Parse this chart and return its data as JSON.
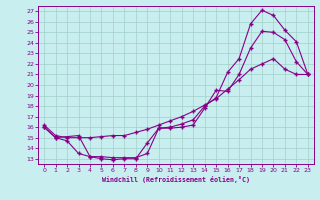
{
  "xlabel": "Windchill (Refroidissement éolien,°C)",
  "bg_color": "#c8eef0",
  "grid_color": "#a0d0c8",
  "line_color": "#880088",
  "spine_color": "#880088",
  "xlim": [
    -0.5,
    23.5
  ],
  "ylim": [
    12.5,
    27.5
  ],
  "xticks": [
    0,
    1,
    2,
    3,
    4,
    5,
    6,
    7,
    8,
    9,
    10,
    11,
    12,
    13,
    14,
    15,
    16,
    17,
    18,
    19,
    20,
    21,
    22,
    23
  ],
  "yticks": [
    13,
    14,
    15,
    16,
    17,
    18,
    19,
    20,
    21,
    22,
    23,
    24,
    25,
    26,
    27
  ],
  "line1_x": [
    0,
    1,
    2,
    3,
    4,
    5,
    6,
    7,
    8,
    9,
    10,
    11,
    12,
    13,
    14,
    15,
    16,
    17,
    18,
    19,
    20,
    21,
    22,
    23
  ],
  "line1_y": [
    16.0,
    15.0,
    14.7,
    13.5,
    13.2,
    13.0,
    12.9,
    13.0,
    13.0,
    14.5,
    15.9,
    15.9,
    16.0,
    16.2,
    17.8,
    19.5,
    19.4,
    21.0,
    23.5,
    25.1,
    25.0,
    24.3,
    22.2,
    21.0
  ],
  "line2_x": [
    0,
    1,
    3,
    4,
    5,
    6,
    7,
    8,
    9,
    10,
    11,
    12,
    13,
    14,
    15,
    16,
    17,
    18,
    19,
    20,
    21,
    22,
    23
  ],
  "line2_y": [
    16.0,
    15.0,
    15.2,
    13.2,
    13.2,
    13.1,
    13.1,
    13.1,
    13.5,
    15.9,
    16.0,
    16.3,
    16.7,
    18.0,
    18.8,
    21.2,
    22.5,
    25.8,
    27.1,
    26.6,
    25.2,
    24.1,
    21.0
  ],
  "line3_x": [
    0,
    1,
    2,
    3,
    4,
    5,
    6,
    7,
    8,
    9,
    10,
    11,
    12,
    13,
    14,
    15,
    16,
    17,
    18,
    19,
    20,
    21,
    22,
    23
  ],
  "line3_y": [
    16.2,
    15.2,
    15.0,
    15.0,
    15.0,
    15.1,
    15.2,
    15.2,
    15.5,
    15.8,
    16.2,
    16.6,
    17.0,
    17.5,
    18.1,
    18.7,
    19.6,
    20.5,
    21.5,
    22.0,
    22.5,
    21.5,
    21.0,
    21.0
  ]
}
